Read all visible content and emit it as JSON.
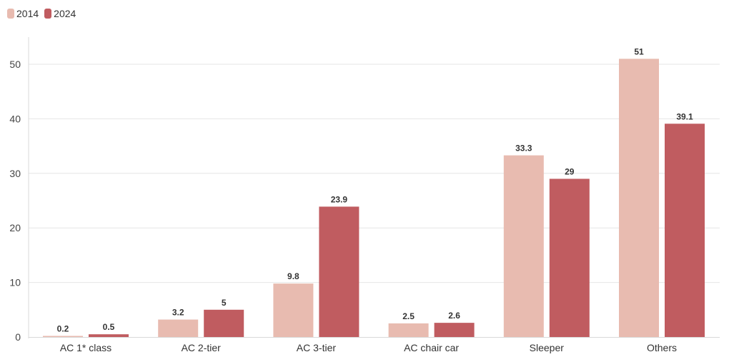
{
  "chart_data": {
    "type": "bar",
    "categories": [
      "AC 1* class",
      "AC 2-tier",
      "AC 3-tier",
      "AC chair car",
      "Sleeper",
      "Others"
    ],
    "series": [
      {
        "name": "2014",
        "values": [
          0.2,
          3.2,
          9.8,
          2.5,
          33.3,
          51
        ],
        "labels": [
          "0.2",
          "3.2",
          "9.8",
          "2.5",
          "33.3",
          "51"
        ],
        "color": "#e8bbb0"
      },
      {
        "name": "2024",
        "values": [
          0.5,
          5,
          23.9,
          2.6,
          29,
          39.1
        ],
        "labels": [
          "0.5",
          "5",
          "23.9",
          "2.6",
          "29",
          "39.1"
        ],
        "color": "#c05c60"
      }
    ],
    "yticks": [
      "0",
      "10",
      "20",
      "30",
      "40",
      "50"
    ],
    "ylim": [
      0,
      55
    ],
    "grid": true,
    "legend_position": "top-left",
    "title": "",
    "xlabel": "",
    "ylabel": ""
  }
}
